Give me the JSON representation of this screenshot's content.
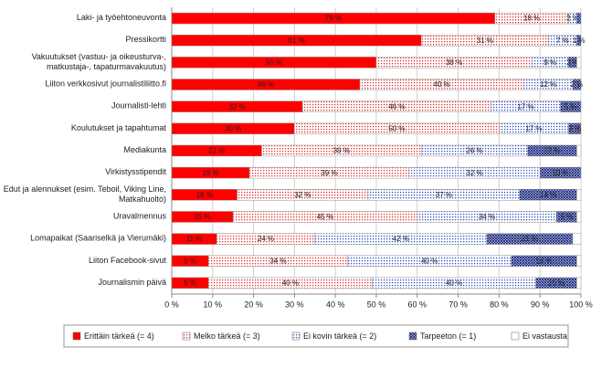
{
  "chart_data": {
    "type": "stacked-bar-horizontal",
    "categories": [
      "Laki- ja työehtoneuvonta",
      "Pressikortti",
      "Vakuutukset (vastuu- ja oikeusturva-,\nmatkustaja-, tapaturmavakuutus)",
      "Liiton verkkosivut journalistiliitto.fi",
      "Journalisti-lehti",
      "Koulutukset ja tapahtumat",
      "Mediakunta",
      "Virkistysstipendit",
      "Edut ja alennukset (esim. Teboil, Viking Line,\nMatkahuolto)",
      "Uravalmennus",
      "Lomapaikat (Saariselkä ja Vierumäki)",
      "Liiton Facebook-sivut",
      "Journalismin päivä"
    ],
    "series": [
      {
        "name": "Erittäin tärkeä (= 4)",
        "color": "#ff0000",
        "pattern": "solid",
        "values": [
          79,
          61,
          50,
          46,
          32,
          30,
          22,
          19,
          16,
          15,
          11,
          9,
          9
        ],
        "value_labels": [
          "79 %",
          "61 %",
          "50 %",
          "46 %",
          "32 %",
          "30 %",
          "22 %",
          "19 %",
          "16 %",
          "15 %",
          "11 %",
          "9 %",
          "9 %"
        ]
      },
      {
        "name": "Melko tärkeä (= 3)",
        "color": "#e03030",
        "pattern": "dots",
        "values": [
          18,
          31,
          38,
          40,
          46,
          50,
          39,
          39,
          32,
          45,
          24,
          34,
          40
        ],
        "value_labels": [
          "18 %",
          "31 %",
          "38 %",
          "40 %",
          "46 %",
          "50 %",
          "39 %",
          "39 %",
          "32 %",
          "45 %",
          "24 %",
          "34 %",
          "40 %"
        ]
      },
      {
        "name": "Ei kovin tärkeä (= 2)",
        "color": "#3050c0",
        "pattern": "dots",
        "values": [
          2,
          7,
          9,
          12,
          17,
          17,
          26,
          32,
          37,
          34,
          42,
          40,
          40
        ],
        "value_labels": [
          "2 %",
          "7 %",
          "9 %",
          "12 %",
          "17 %",
          "17 %",
          "26 %",
          "32 %",
          "37 %",
          "34 %",
          "42 %",
          "40 %",
          "40 %"
        ]
      },
      {
        "name": "Tarpeeton (= 1)",
        "color": "#1a2a80",
        "pattern": "crosshatch",
        "values": [
          1,
          1,
          2,
          2,
          5,
          3,
          12,
          10,
          14,
          5,
          21,
          16,
          10
        ],
        "value_labels": [
          null,
          "1 %",
          "2 %",
          "2 %",
          "5 %",
          "3 %",
          "12 %",
          "10 %",
          "14 %",
          "5 %",
          "21 %",
          "16 %",
          "10 %"
        ]
      },
      {
        "name": "Ei vastausta",
        "color": "#ffffff",
        "pattern": "solid",
        "values": [
          0,
          0,
          1,
          0,
          0,
          0,
          1,
          0,
          1,
          1,
          2,
          1,
          1
        ]
      }
    ],
    "xlim": [
      0,
      100
    ],
    "xticks": [
      {
        "value": 0,
        "label": "0 %"
      },
      {
        "value": 10,
        "label": "10 %"
      },
      {
        "value": 20,
        "label": "20 %"
      },
      {
        "value": 30,
        "label": "30 %"
      },
      {
        "value": 40,
        "label": "40 %"
      },
      {
        "value": 50,
        "label": "50 %"
      },
      {
        "value": 60,
        "label": "60 %"
      },
      {
        "value": 70,
        "label": "70 %"
      },
      {
        "value": 80,
        "label": "80 %"
      },
      {
        "value": 90,
        "label": "90 %"
      },
      {
        "value": 100,
        "label": "100 %"
      }
    ],
    "grid": true,
    "legend": "bottom"
  }
}
